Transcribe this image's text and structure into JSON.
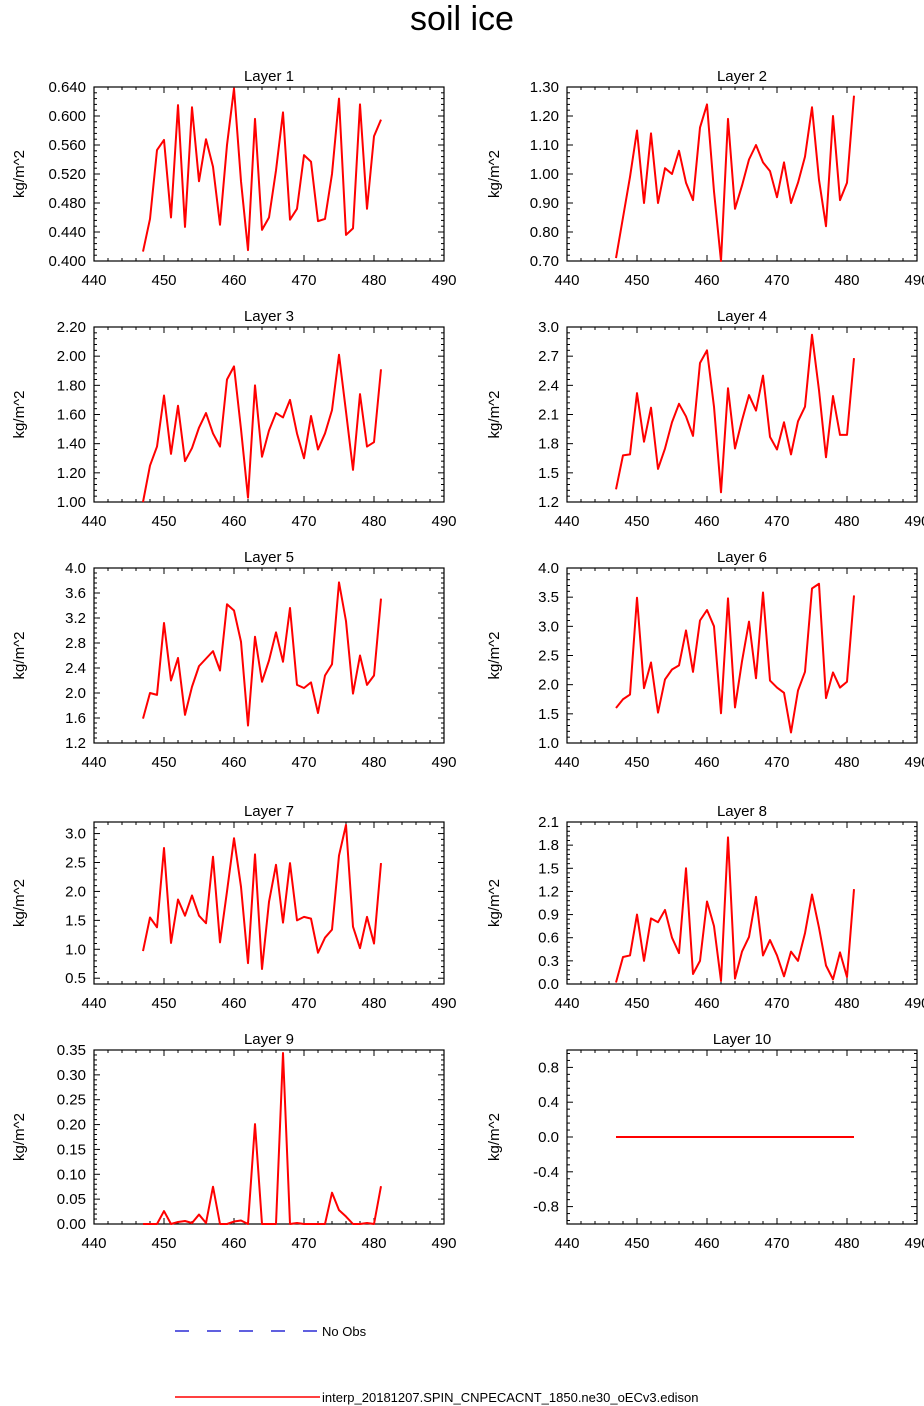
{
  "title": "soil ice",
  "xlim": [
    440,
    490
  ],
  "xticks": [
    "440",
    "450",
    "460",
    "470",
    "480",
    "490"
  ],
  "colors": {
    "model": "#ff0000",
    "obs": "#0000cc",
    "axis": "#000000"
  },
  "legend": {
    "obs_label": "No Obs",
    "model_label": "interp_20181207.SPIN_CNPECACNT_1850.ne30_oECv3.edison"
  },
  "chart_data": [
    {
      "type": "line",
      "title": "Layer 1",
      "ylabel": "kg/m^2",
      "ylim": [
        0.4,
        0.64
      ],
      "yticks": [
        "0.400",
        "0.440",
        "0.480",
        "0.520",
        "0.560",
        "0.600",
        "0.640"
      ],
      "x": [
        447,
        448,
        449,
        450,
        451,
        452,
        453,
        454,
        455,
        456,
        457,
        458,
        459,
        460,
        461,
        462,
        463,
        464,
        465,
        466,
        467,
        468,
        469,
        470,
        471,
        472,
        473,
        474,
        475,
        476,
        477,
        478,
        479,
        480,
        481
      ],
      "series": [
        {
          "name": "interp_20181207.SPIN_CNPECACNT_1850.ne30_oECv3.edison",
          "values": [
            0.413,
            0.458,
            0.553,
            0.567,
            0.46,
            0.615,
            0.447,
            0.612,
            0.51,
            0.568,
            0.53,
            0.45,
            0.56,
            0.638,
            0.51,
            0.415,
            0.596,
            0.443,
            0.46,
            0.525,
            0.605,
            0.457,
            0.472,
            0.546,
            0.537,
            0.455,
            0.458,
            0.52,
            0.624,
            0.436,
            0.445,
            0.616,
            0.472,
            0.572,
            0.595
          ]
        }
      ]
    },
    {
      "type": "line",
      "title": "Layer 2",
      "ylabel": "kg/m^2",
      "ylim": [
        0.7,
        1.3
      ],
      "yticks": [
        "0.70",
        "0.80",
        "0.90",
        "1.00",
        "1.10",
        "1.20",
        "1.30"
      ],
      "x": [
        447,
        448,
        449,
        450,
        451,
        452,
        453,
        454,
        455,
        456,
        457,
        458,
        459,
        460,
        461,
        462,
        463,
        464,
        465,
        466,
        467,
        468,
        469,
        470,
        471,
        472,
        473,
        474,
        475,
        476,
        477,
        478,
        479,
        480,
        481
      ],
      "series": [
        {
          "name": "interp_20181207.SPIN_CNPECACNT_1850.ne30_oECv3.edison",
          "values": [
            0.71,
            0.85,
            0.99,
            1.15,
            0.9,
            1.14,
            0.9,
            1.02,
            1.0,
            1.08,
            0.97,
            0.91,
            1.16,
            1.24,
            0.94,
            0.7,
            1.19,
            0.88,
            0.96,
            1.05,
            1.1,
            1.04,
            1.01,
            0.92,
            1.04,
            0.9,
            0.97,
            1.06,
            1.23,
            0.98,
            0.82,
            1.2,
            0.91,
            0.97,
            1.27
          ]
        }
      ]
    },
    {
      "type": "line",
      "title": "Layer 3",
      "ylabel": "kg/m^2",
      "ylim": [
        1.0,
        2.2
      ],
      "yticks": [
        "1.00",
        "1.20",
        "1.40",
        "1.60",
        "1.80",
        "2.00",
        "2.20"
      ],
      "x": [
        447,
        448,
        449,
        450,
        451,
        452,
        453,
        454,
        455,
        456,
        457,
        458,
        459,
        460,
        461,
        462,
        463,
        464,
        465,
        466,
        467,
        468,
        469,
        470,
        471,
        472,
        473,
        474,
        475,
        476,
        477,
        478,
        479,
        480,
        481
      ],
      "series": [
        {
          "name": "interp_20181207.SPIN_CNPECACNT_1850.ne30_oECv3.edison",
          "values": [
            1.0,
            1.25,
            1.38,
            1.73,
            1.33,
            1.66,
            1.28,
            1.37,
            1.51,
            1.61,
            1.47,
            1.38,
            1.84,
            1.93,
            1.5,
            1.03,
            1.8,
            1.31,
            1.49,
            1.61,
            1.58,
            1.7,
            1.47,
            1.3,
            1.59,
            1.36,
            1.47,
            1.63,
            2.01,
            1.62,
            1.22,
            1.74,
            1.38,
            1.41,
            1.91
          ]
        }
      ]
    },
    {
      "type": "line",
      "title": "Layer 4",
      "ylabel": "kg/m^2",
      "ylim": [
        1.2,
        3.0
      ],
      "yticks": [
        "1.2",
        "1.5",
        "1.8",
        "2.1",
        "2.4",
        "2.7",
        "3.0"
      ],
      "x": [
        447,
        448,
        449,
        450,
        451,
        452,
        453,
        454,
        455,
        456,
        457,
        458,
        459,
        460,
        461,
        462,
        463,
        464,
        465,
        466,
        467,
        468,
        469,
        470,
        471,
        472,
        473,
        474,
        475,
        476,
        477,
        478,
        479,
        480,
        481
      ],
      "series": [
        {
          "name": "interp_20181207.SPIN_CNPECACNT_1850.ne30_oECv3.edison",
          "values": [
            1.33,
            1.68,
            1.69,
            2.32,
            1.82,
            2.17,
            1.54,
            1.75,
            2.02,
            2.21,
            2.08,
            1.88,
            2.63,
            2.76,
            2.18,
            1.3,
            2.37,
            1.75,
            2.04,
            2.3,
            2.14,
            2.5,
            1.87,
            1.74,
            2.02,
            1.69,
            2.03,
            2.18,
            2.92,
            2.35,
            1.66,
            2.29,
            1.89,
            1.89,
            2.68
          ]
        }
      ]
    },
    {
      "type": "line",
      "title": "Layer 5",
      "ylabel": "kg/m^2",
      "ylim": [
        1.2,
        4.0
      ],
      "yticks": [
        "1.2",
        "1.6",
        "2.0",
        "2.4",
        "2.8",
        "3.2",
        "3.6",
        "4.0"
      ],
      "x": [
        447,
        448,
        449,
        450,
        451,
        452,
        453,
        454,
        455,
        456,
        457,
        458,
        459,
        460,
        461,
        462,
        463,
        464,
        465,
        466,
        467,
        468,
        469,
        470,
        471,
        472,
        473,
        474,
        475,
        476,
        477,
        478,
        479,
        480,
        481
      ],
      "series": [
        {
          "name": "interp_20181207.SPIN_CNPECACNT_1850.ne30_oECv3.edison",
          "values": [
            1.59,
            2.0,
            1.97,
            3.12,
            2.2,
            2.56,
            1.65,
            2.1,
            2.43,
            2.55,
            2.67,
            2.36,
            3.42,
            3.32,
            2.82,
            1.48,
            2.9,
            2.18,
            2.52,
            2.97,
            2.5,
            3.36,
            2.13,
            2.08,
            2.17,
            1.68,
            2.28,
            2.46,
            3.77,
            3.15,
            1.99,
            2.6,
            2.13,
            2.28,
            3.51
          ]
        }
      ]
    },
    {
      "type": "line",
      "title": "Layer 6",
      "ylabel": "kg/m^2",
      "ylim": [
        1.0,
        4.0
      ],
      "yticks": [
        "1.0",
        "1.5",
        "2.0",
        "2.5",
        "3.0",
        "3.5",
        "4.0"
      ],
      "x": [
        447,
        448,
        449,
        450,
        451,
        452,
        453,
        454,
        455,
        456,
        457,
        458,
        459,
        460,
        461,
        462,
        463,
        464,
        465,
        466,
        467,
        468,
        469,
        470,
        471,
        472,
        473,
        474,
        475,
        476,
        477,
        478,
        479,
        480,
        481
      ],
      "series": [
        {
          "name": "interp_20181207.SPIN_CNPECACNT_1850.ne30_oECv3.edison",
          "values": [
            1.6,
            1.75,
            1.83,
            3.49,
            1.94,
            2.38,
            1.52,
            2.09,
            2.26,
            2.33,
            2.93,
            2.22,
            3.1,
            3.28,
            3.0,
            1.51,
            3.48,
            1.61,
            2.4,
            3.08,
            2.11,
            3.58,
            2.07,
            1.95,
            1.86,
            1.18,
            1.9,
            2.22,
            3.65,
            3.73,
            1.77,
            2.21,
            1.95,
            2.05,
            3.53
          ]
        }
      ]
    },
    {
      "type": "line",
      "title": "Layer 7",
      "ylabel": "kg/m^2",
      "ylim": [
        0.4,
        3.2
      ],
      "yticks": [
        "0.5",
        "1.0",
        "1.5",
        "2.0",
        "2.5",
        "3.0"
      ],
      "ytick_values": [
        0.5,
        1.0,
        1.5,
        2.0,
        2.5,
        3.0
      ],
      "x": [
        447,
        448,
        449,
        450,
        451,
        452,
        453,
        454,
        455,
        456,
        457,
        458,
        459,
        460,
        461,
        462,
        463,
        464,
        465,
        466,
        467,
        468,
        469,
        470,
        471,
        472,
        473,
        474,
        475,
        476,
        477,
        478,
        479,
        480,
        481
      ],
      "series": [
        {
          "name": "interp_20181207.SPIN_CNPECACNT_1850.ne30_oECv3.edison",
          "values": [
            0.97,
            1.55,
            1.38,
            2.75,
            1.11,
            1.86,
            1.58,
            1.93,
            1.58,
            1.45,
            2.6,
            1.12,
            2.0,
            2.92,
            2.08,
            0.76,
            2.64,
            0.66,
            1.82,
            2.46,
            1.46,
            2.49,
            1.5,
            1.56,
            1.53,
            0.94,
            1.2,
            1.34,
            2.62,
            3.15,
            1.39,
            1.02,
            1.56,
            1.1,
            2.49
          ]
        }
      ]
    },
    {
      "type": "line",
      "title": "Layer 8",
      "ylabel": "kg/m^2",
      "ylim": [
        0.0,
        2.1
      ],
      "yticks": [
        "0.0",
        "0.3",
        "0.6",
        "0.9",
        "1.2",
        "1.5",
        "1.8",
        "2.1"
      ],
      "x": [
        447,
        448,
        449,
        450,
        451,
        452,
        453,
        454,
        455,
        456,
        457,
        458,
        459,
        460,
        461,
        462,
        463,
        464,
        465,
        466,
        467,
        468,
        469,
        470,
        471,
        472,
        473,
        474,
        475,
        476,
        477,
        478,
        479,
        480,
        481
      ],
      "series": [
        {
          "name": "interp_20181207.SPIN_CNPECACNT_1850.ne30_oECv3.edison",
          "values": [
            0.02,
            0.35,
            0.37,
            0.9,
            0.3,
            0.85,
            0.8,
            0.96,
            0.6,
            0.4,
            1.5,
            0.13,
            0.3,
            1.07,
            0.75,
            0.04,
            1.9,
            0.07,
            0.42,
            0.61,
            1.13,
            0.37,
            0.57,
            0.37,
            0.1,
            0.42,
            0.3,
            0.66,
            1.16,
            0.73,
            0.24,
            0.06,
            0.41,
            0.09,
            1.23
          ]
        }
      ]
    },
    {
      "type": "line",
      "title": "Layer 9",
      "ylabel": "kg/m^2",
      "ylim": [
        0.0,
        0.35
      ],
      "yticks": [
        "0.00",
        "0.05",
        "0.10",
        "0.15",
        "0.20",
        "0.25",
        "0.30",
        "0.35"
      ],
      "x": [
        447,
        448,
        449,
        450,
        451,
        452,
        453,
        454,
        455,
        456,
        457,
        458,
        459,
        460,
        461,
        462,
        463,
        464,
        465,
        466,
        467,
        468,
        469,
        470,
        471,
        472,
        473,
        474,
        475,
        476,
        477,
        478,
        479,
        480,
        481
      ],
      "series": [
        {
          "name": "interp_20181207.SPIN_CNPECACNT_1850.ne30_oECv3.edison",
          "values": [
            0,
            0,
            0,
            0.026,
            0,
            0.004,
            0.006,
            0.002,
            0.019,
            0.002,
            0.075,
            0,
            0,
            0.005,
            0.007,
            0,
            0.201,
            0,
            0,
            0,
            0.344,
            0,
            0.002,
            0,
            0,
            0,
            0,
            0.063,
            0.028,
            0.015,
            0,
            0,
            0.002,
            0,
            0.076
          ]
        }
      ]
    },
    {
      "type": "line",
      "title": "Layer 10",
      "ylabel": "kg/m^2",
      "ylim": [
        -1.0,
        1.0
      ],
      "yticks": [
        "-0.8",
        "-0.4",
        "0.0",
        "0.4",
        "0.8"
      ],
      "ytick_values": [
        -0.8,
        -0.4,
        0.0,
        0.4,
        0.8
      ],
      "x": [
        447,
        448,
        449,
        450,
        451,
        452,
        453,
        454,
        455,
        456,
        457,
        458,
        459,
        460,
        461,
        462,
        463,
        464,
        465,
        466,
        467,
        468,
        469,
        470,
        471,
        472,
        473,
        474,
        475,
        476,
        477,
        478,
        479,
        480,
        481
      ],
      "series": [
        {
          "name": "interp_20181207.SPIN_CNPECACNT_1850.ne30_oECv3.edison",
          "values": [
            0,
            0,
            0,
            0,
            0,
            0,
            0,
            0,
            0,
            0,
            0,
            0,
            0,
            0,
            0,
            0,
            0,
            0,
            0,
            0,
            0,
            0,
            0,
            0,
            0,
            0,
            0,
            0,
            0,
            0,
            0,
            0,
            0,
            0,
            0
          ]
        }
      ]
    }
  ]
}
